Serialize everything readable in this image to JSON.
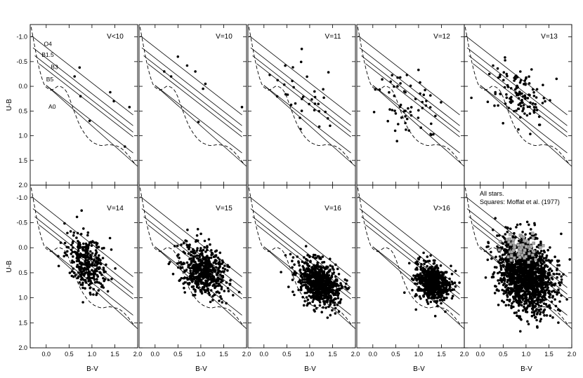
{
  "figure": {
    "xlabel": "B-V",
    "ylabel": "U-B",
    "x_ticks": [
      "0.0",
      "0.5",
      "1.0",
      "1.5",
      "2.0"
    ],
    "y_ticks": [
      "-1.0",
      "-0.5",
      "0.0",
      "0.5",
      "1.0",
      "1.5",
      "2.0"
    ],
    "extra_note_line1": "All stars.",
    "extra_note_line2": "Squares: Moffat et al. (1977)"
  },
  "chart_data": {
    "type": "scatter",
    "layout": "2 rows x 5 panels, shared axes",
    "xlim": [
      -0.35,
      2.0
    ],
    "ylim": [
      2.0,
      -1.25
    ],
    "y_inverted": true,
    "grid": false,
    "reddening_lines": {
      "spectral_types": [
        "O4",
        "B1.5",
        "B3",
        "B5",
        "A0"
      ],
      "starts": [
        [
          -0.32,
          -1.02
        ],
        [
          -0.29,
          -0.78
        ],
        [
          -0.25,
          -0.62
        ],
        [
          -0.16,
          -0.46
        ],
        [
          0.0,
          -0.02
        ]
      ],
      "slope": 0.72,
      "end_x": [
        1.9,
        1.9,
        1.9,
        1.9,
        1.9
      ]
    },
    "intrinsic_sequence": {
      "style": "dashed",
      "x": [
        -0.33,
        -0.3,
        -0.25,
        -0.2,
        -0.15,
        -0.1,
        -0.05,
        0.0,
        0.05,
        0.1,
        0.15,
        0.2,
        0.25,
        0.3,
        0.35,
        0.4,
        0.45,
        0.5,
        0.55,
        0.6,
        0.65,
        0.7,
        0.75,
        0.8,
        0.85,
        0.9,
        0.95,
        1.0,
        1.05,
        1.1,
        1.15,
        1.2,
        1.25,
        1.3,
        1.35,
        1.4,
        1.45,
        1.5,
        1.55,
        1.6,
        1.65,
        1.7,
        1.75,
        1.8,
        1.85,
        1.9,
        1.95
      ],
      "y": [
        -1.2,
        -1.05,
        -0.8,
        -0.55,
        -0.35,
        -0.18,
        -0.05,
        0.02,
        0.05,
        0.08,
        0.06,
        0.03,
        0.0,
        0.0,
        0.02,
        0.05,
        0.12,
        0.22,
        0.35,
        0.48,
        0.6,
        0.72,
        0.82,
        0.9,
        0.97,
        1.03,
        1.08,
        1.12,
        1.15,
        1.17,
        1.19,
        1.2,
        1.2,
        1.19,
        1.18,
        1.18,
        1.19,
        1.2,
        1.21,
        1.23,
        1.26,
        1.3,
        1.35,
        1.4,
        1.46,
        1.52,
        1.58
      ]
    },
    "panels": [
      {
        "label": "V<10",
        "n": 8,
        "center": [
          1.1,
          0.5
        ],
        "spread": [
          0.45,
          0.35
        ],
        "points": [
          [
            0.73,
            -0.38
          ],
          [
            0.75,
            0.2
          ],
          [
            0.95,
            0.7
          ],
          [
            1.4,
            0.12
          ],
          [
            1.48,
            0.3
          ],
          [
            1.82,
            0.42
          ],
          [
            1.72,
            1.22
          ],
          [
            0.62,
            -0.2
          ]
        ]
      },
      {
        "label": "V=10",
        "n": 9,
        "center": [
          1.0,
          0.2
        ],
        "spread": [
          0.45,
          0.35
        ],
        "points": [
          [
            0.2,
            -0.3
          ],
          [
            0.7,
            -0.42
          ],
          [
            0.88,
            -0.3
          ],
          [
            1.05,
            0.05
          ],
          [
            0.95,
            0.72
          ],
          [
            0.35,
            -0.2
          ],
          [
            1.1,
            -0.05
          ],
          [
            1.9,
            0.42
          ],
          [
            0.5,
            -0.6
          ]
        ]
      },
      {
        "label": "V=11",
        "n": 35,
        "center": [
          0.95,
          0.2
        ],
        "spread": [
          0.4,
          0.35
        ],
        "points": []
      },
      {
        "label": "V=12",
        "n": 60,
        "center": [
          0.75,
          0.3
        ],
        "spread": [
          0.35,
          0.35
        ],
        "points": []
      },
      {
        "label": "V=13",
        "n": 120,
        "center": [
          0.85,
          0.2
        ],
        "spread": [
          0.3,
          0.3
        ],
        "points": []
      },
      {
        "label": "V=14",
        "n": 320,
        "center": [
          0.9,
          0.3
        ],
        "spread": [
          0.22,
          0.25
        ],
        "points": []
      },
      {
        "label": "V=15",
        "n": 520,
        "center": [
          1.05,
          0.45
        ],
        "spread": [
          0.25,
          0.25
        ],
        "points": []
      },
      {
        "label": "V=16",
        "n": 700,
        "center": [
          1.2,
          0.7
        ],
        "spread": [
          0.22,
          0.22
        ],
        "points": []
      },
      {
        "label": "V>16",
        "n": 650,
        "center": [
          1.3,
          0.7
        ],
        "spread": [
          0.18,
          0.18
        ],
        "points": []
      },
      {
        "label": "",
        "n": 1500,
        "center": [
          1.0,
          0.55
        ],
        "spread": [
          0.3,
          0.35
        ],
        "moffat_squares": 60,
        "note": true,
        "points": []
      }
    ]
  }
}
